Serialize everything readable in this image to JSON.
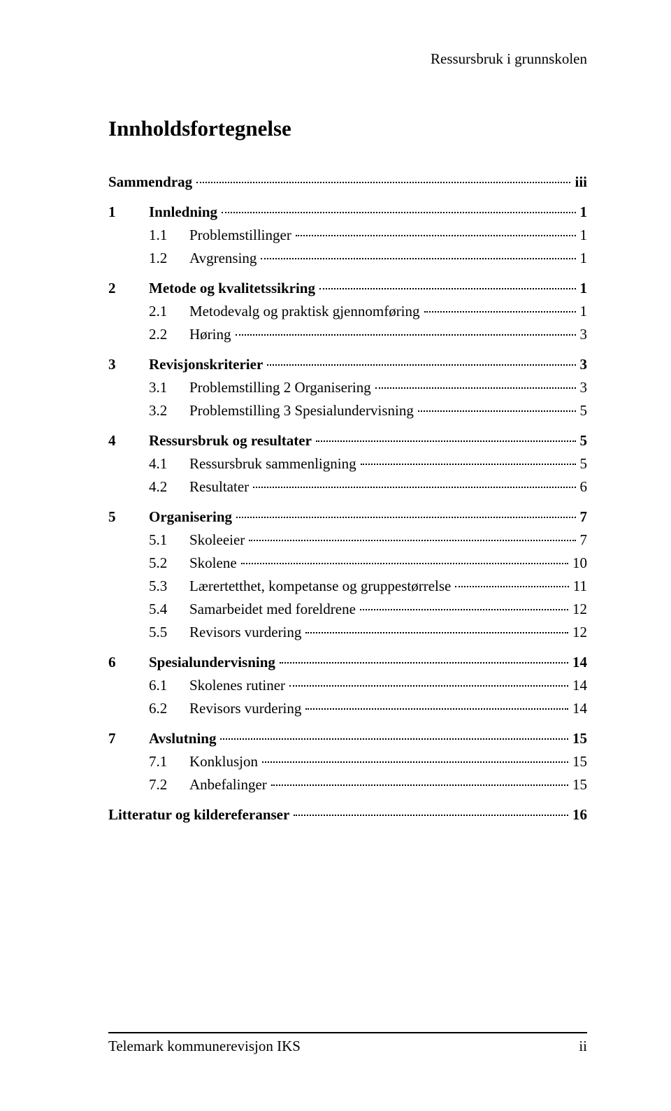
{
  "colors": {
    "background": "#ffffff",
    "text": "#000000",
    "rule": "#000000",
    "leader": "#000000"
  },
  "typography": {
    "family": "Times New Roman",
    "body_fontsize_pt": 16,
    "title_fontsize_pt": 23,
    "title_weight": "bold"
  },
  "running_header": "Ressursbruk i grunnskolen",
  "title": "Innholdsfortegnelse",
  "toc": [
    {
      "bold": true,
      "items": [
        {
          "num": "",
          "label": "Sammendrag",
          "page": "iii"
        }
      ]
    },
    {
      "bold": true,
      "items": [
        {
          "num": "1",
          "label": "Innledning",
          "page": "1"
        }
      ],
      "sub": [
        {
          "num": "1.1",
          "label": "Problemstillinger",
          "page": "1"
        },
        {
          "num": "1.2",
          "label": "Avgrensing",
          "page": "1"
        }
      ]
    },
    {
      "bold": true,
      "items": [
        {
          "num": "2",
          "label": "Metode og kvalitetssikring",
          "page": "1"
        }
      ],
      "sub": [
        {
          "num": "2.1",
          "label": "Metodevalg og praktisk gjennomføring",
          "page": "1"
        },
        {
          "num": "2.2",
          "label": "Høring",
          "page": "3"
        }
      ]
    },
    {
      "bold": true,
      "items": [
        {
          "num": "3",
          "label": "Revisjonskriterier",
          "page": "3"
        }
      ],
      "sub": [
        {
          "num": "3.1",
          "label": "Problemstilling 2 Organisering",
          "page": "3"
        },
        {
          "num": "3.2",
          "label": "Problemstilling 3 Spesialundervisning",
          "page": "5"
        }
      ]
    },
    {
      "bold": true,
      "items": [
        {
          "num": "4",
          "label": "Ressursbruk og resultater",
          "page": "5"
        }
      ],
      "sub": [
        {
          "num": "4.1",
          "label": "Ressursbruk sammenligning",
          "page": "5"
        },
        {
          "num": "4.2",
          "label": "Resultater",
          "page": "6"
        }
      ]
    },
    {
      "bold": true,
      "items": [
        {
          "num": "5",
          "label": "Organisering",
          "page": "7"
        }
      ],
      "sub": [
        {
          "num": "5.1",
          "label": "Skoleeier",
          "page": "7"
        },
        {
          "num": "5.2",
          "label": "Skolene",
          "page": "10"
        },
        {
          "num": "5.3",
          "label": "Lærertetthet, kompetanse og gruppestørrelse",
          "page": "11"
        },
        {
          "num": "5.4",
          "label": "Samarbeidet med foreldrene",
          "page": "12"
        },
        {
          "num": "5.5",
          "label": "Revisors vurdering",
          "page": "12"
        }
      ]
    },
    {
      "bold": true,
      "items": [
        {
          "num": "6",
          "label": "Spesialundervisning",
          "page": "14"
        }
      ],
      "sub": [
        {
          "num": "6.1",
          "label": "Skolenes rutiner",
          "page": "14"
        },
        {
          "num": "6.2",
          "label": "Revisors vurdering",
          "page": "14"
        }
      ]
    },
    {
      "bold": true,
      "items": [
        {
          "num": "7",
          "label": "Avslutning",
          "page": "15"
        }
      ],
      "sub": [
        {
          "num": "7.1",
          "label": "Konklusjon",
          "page": "15"
        },
        {
          "num": "7.2",
          "label": "Anbefalinger",
          "page": "15"
        }
      ]
    },
    {
      "bold": true,
      "items": [
        {
          "num": "",
          "label": "Litteratur og kildereferanser",
          "page": "16"
        }
      ]
    }
  ],
  "footer": {
    "left": "Telemark kommunerevisjon IKS",
    "right": "ii"
  }
}
